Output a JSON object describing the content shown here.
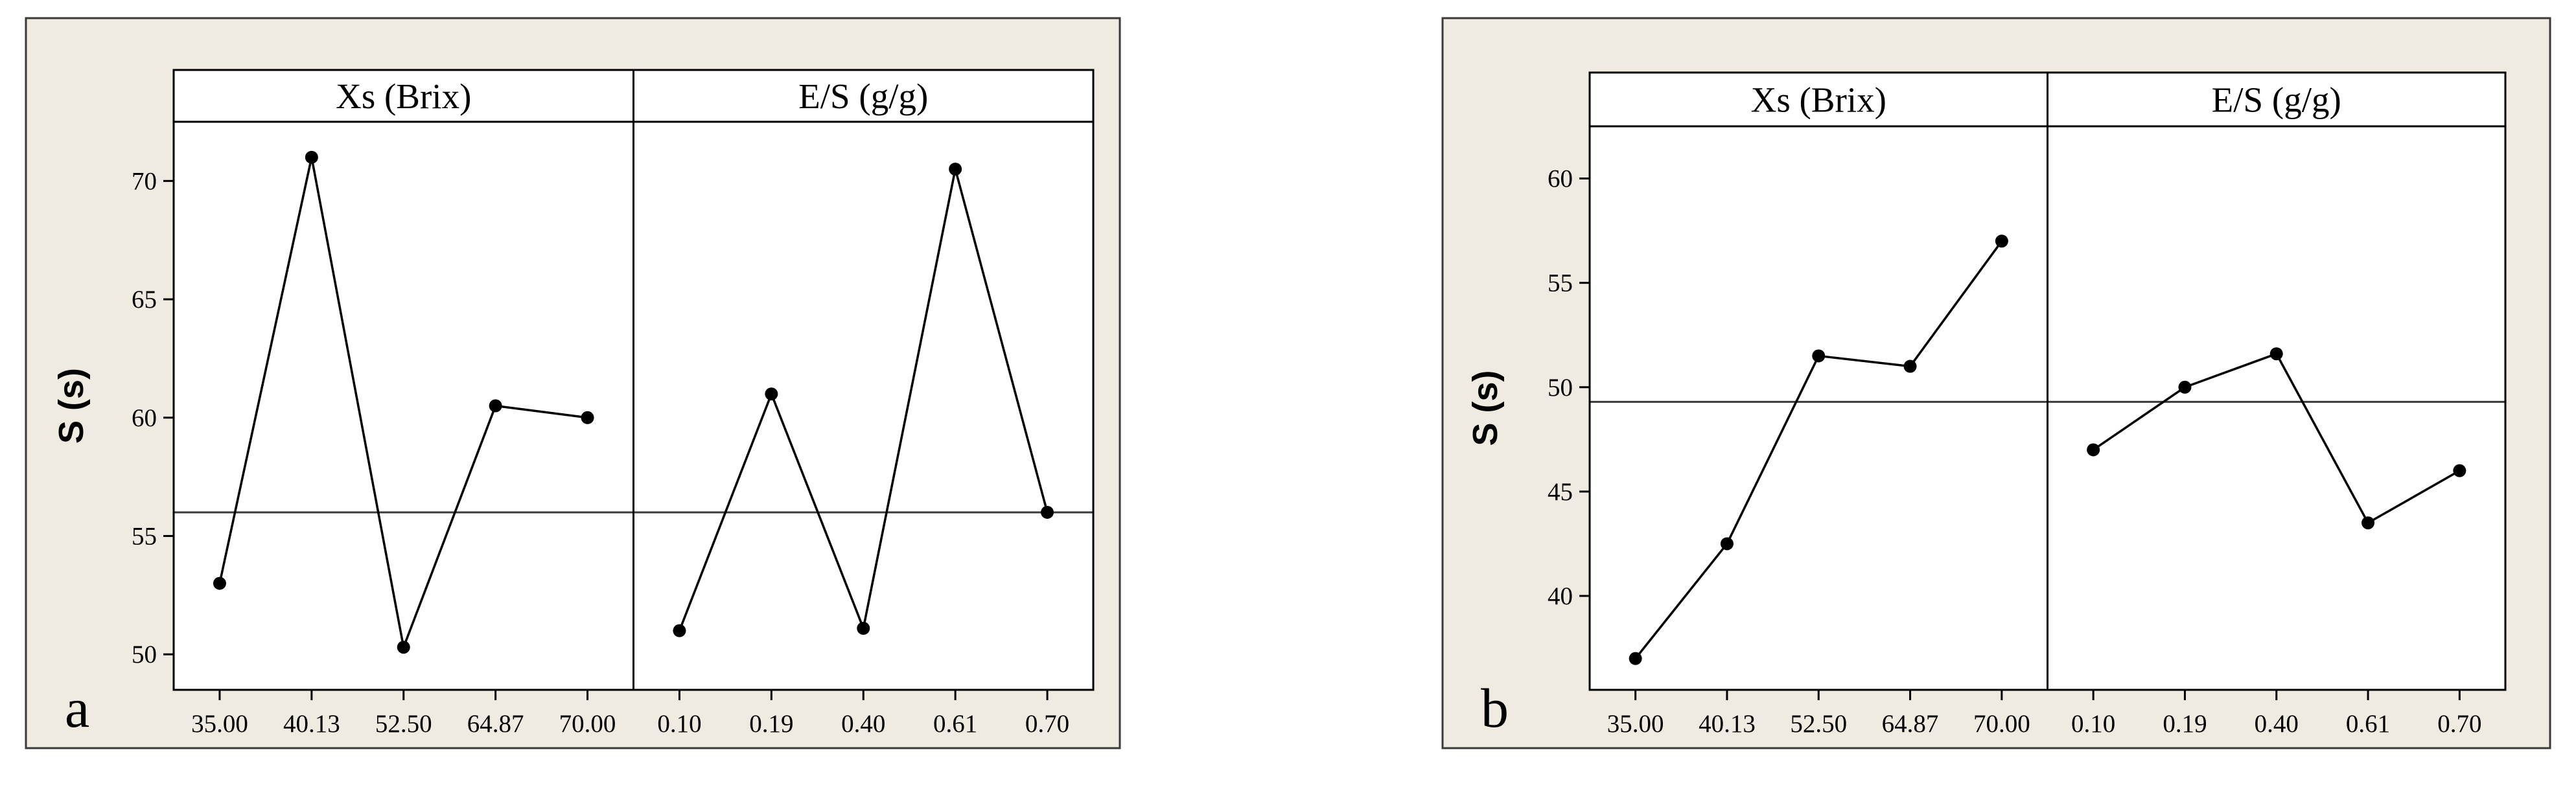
{
  "chart_data": [
    {
      "type": "line",
      "letter": "a",
      "ylabel": "S (s)",
      "ylim": [
        48.5,
        72.5
      ],
      "yticks": [
        50,
        55,
        60,
        65,
        70
      ],
      "reference_line": 56,
      "panels": [
        {
          "title": "Xs (Brix)",
          "categories": [
            "35.00",
            "40.13",
            "52.50",
            "64.87",
            "70.00"
          ],
          "values": [
            53.0,
            71.0,
            50.3,
            60.5,
            60.0
          ]
        },
        {
          "title": "E/S (g/g)",
          "categories": [
            "0.10",
            "0.19",
            "0.40",
            "0.61",
            "0.70"
          ],
          "values": [
            51.0,
            61.0,
            51.1,
            70.5,
            56.0
          ]
        }
      ]
    },
    {
      "type": "line",
      "letter": "b",
      "ylabel": "S (s)",
      "ylim": [
        35.5,
        62.5
      ],
      "yticks": [
        40,
        45,
        50,
        55,
        60
      ],
      "reference_line": 49.3,
      "panels": [
        {
          "title": "Xs (Brix)",
          "categories": [
            "35.00",
            "40.13",
            "52.50",
            "64.87",
            "70.00"
          ],
          "values": [
            37.0,
            42.5,
            51.5,
            51.0,
            57.0
          ]
        },
        {
          "title": "E/S (g/g)",
          "categories": [
            "0.10",
            "0.19",
            "0.40",
            "0.61",
            "0.70"
          ],
          "values": [
            47.0,
            50.0,
            51.6,
            43.5,
            46.0
          ]
        }
      ]
    }
  ],
  "colors": {
    "frame_background": "#efebe0",
    "plot_background": "#ffffff",
    "line": "#000000"
  }
}
